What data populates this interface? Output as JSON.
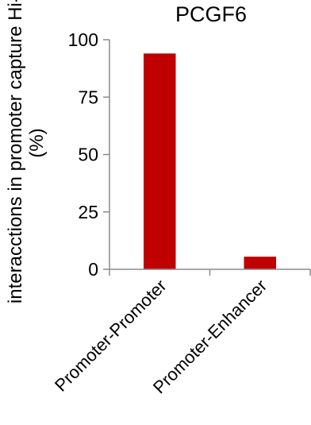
{
  "chart_data": {
    "type": "bar",
    "title": "PCGF6",
    "ylabel_line1": "interacctions in promoter capture Hi-C",
    "ylabel_line2": "(%)",
    "categories": [
      "Promoter-Promoter",
      "Promoter-Enhancer"
    ],
    "values": [
      94,
      5.5
    ],
    "ylim": [
      0,
      100
    ],
    "yticks": [
      0,
      25,
      50,
      75,
      100
    ],
    "bar_color": "#c00000",
    "grid": false,
    "legend": "none"
  }
}
